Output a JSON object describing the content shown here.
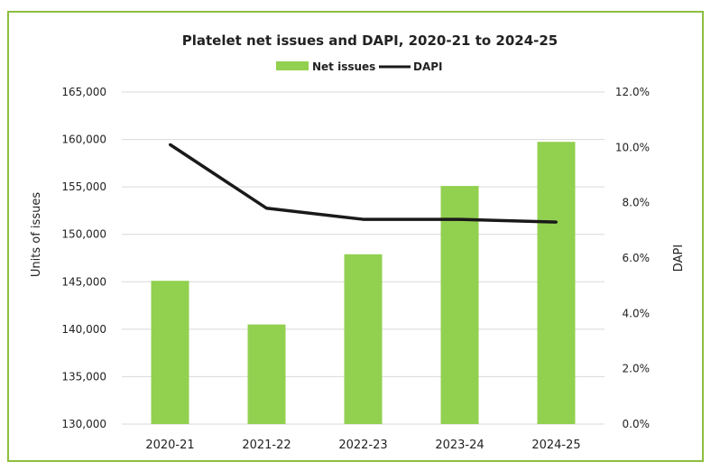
{
  "chart_data": {
    "type": "bar+line",
    "title": "Platelet net issues and DAPI, 2020-21 to 2024-25",
    "categories": [
      "2020-21",
      "2021-22",
      "2022-23",
      "2023-24",
      "2024-25"
    ],
    "series": [
      {
        "name": "Net issues",
        "type": "bar",
        "axis": "left",
        "color": "#92d050",
        "values": [
          145100,
          140500,
          147900,
          155100,
          159750
        ]
      },
      {
        "name": "DAPI",
        "type": "line",
        "axis": "right",
        "color": "#1a1a1a",
        "values": [
          10.1,
          7.8,
          7.4,
          7.4,
          7.3
        ]
      }
    ],
    "ylabel": "Units of issues",
    "y2label": "DAPI",
    "ylim": [
      130000,
      165000
    ],
    "y2lim": [
      0,
      12
    ],
    "yticks": [
      "130,000",
      "135,000",
      "140,000",
      "145,000",
      "150,000",
      "155,000",
      "160,000",
      "165,000"
    ],
    "y2ticks": [
      "0.0%",
      "2.0%",
      "4.0%",
      "6.0%",
      "8.0%",
      "10.0%",
      "12.0%"
    ],
    "grid": true,
    "legend": "top-center"
  }
}
